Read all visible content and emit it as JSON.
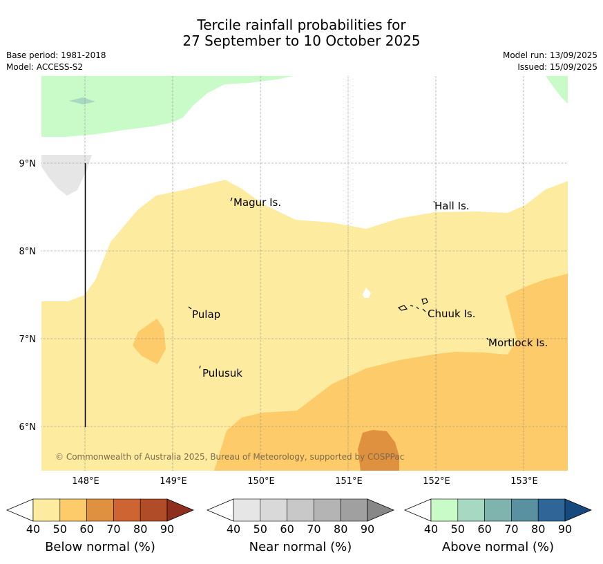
{
  "title": {
    "line1": "Tercile rainfall probabilities for",
    "line2": "27 September to 10 October 2025"
  },
  "info": {
    "base_period": "Base period: 1981-2018",
    "model": "Model: ACCESS-S2",
    "model_run": "Model run: 13/09/2025",
    "issued": "Issued: 15/09/2025"
  },
  "map": {
    "lat_labels": [
      "9°N",
      "8°N",
      "7°N",
      "6°N"
    ],
    "lon_labels": [
      "148°E",
      "149°E",
      "150°E",
      "151°E",
      "152°E",
      "153°E"
    ],
    "places": {
      "magur": "Magur Is.",
      "hall": "Hall Is.",
      "pulap": "Pulap",
      "chuuk": "Chuuk Is.",
      "mortlock": "Mortlock Is.",
      "pulusuk": "Pulusuk"
    },
    "copyright": "© Commonwealth of Australia 2025, Bureau of Meteorology, supported by COSPPac",
    "colors": {
      "below_50": "#fdeba0",
      "below_60": "#fdcb6a",
      "below_70": "#e0913f",
      "near_40": "#e6e6e6",
      "above_40": "#c8fbc8",
      "above_50_60": "#a6d8c2"
    }
  },
  "colorbars": {
    "below": {
      "label": "Below normal (%)",
      "ticks": [
        "40",
        "50",
        "60",
        "70",
        "80",
        "90"
      ],
      "colors": [
        "#fdeba0",
        "#fdcb6a",
        "#e0913f",
        "#cd6432",
        "#b04c28",
        "#8e2e1e"
      ]
    },
    "near": {
      "label": "Near normal (%)",
      "ticks": [
        "40",
        "50",
        "60",
        "70",
        "80",
        "90"
      ],
      "colors": [
        "#e6e6e6",
        "#d9d9d9",
        "#c8c8c8",
        "#b4b4b4",
        "#a0a0a0",
        "#878787"
      ]
    },
    "above": {
      "label": "Above normal (%)",
      "ticks": [
        "40",
        "50",
        "60",
        "70",
        "80",
        "90"
      ],
      "colors": [
        "#c8fbc8",
        "#a6d8c2",
        "#7fb4ae",
        "#5a91a0",
        "#2f6698",
        "#164a7e"
      ]
    }
  }
}
